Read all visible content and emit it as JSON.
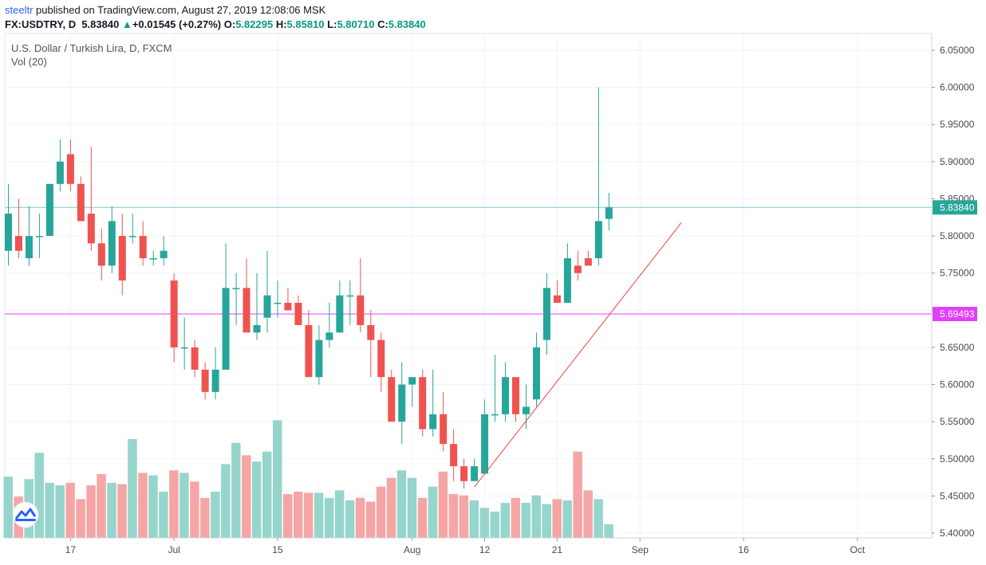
{
  "header": {
    "author": "steeltr",
    "published": " published on TradingView.com, August 27, 2019 12:08:06 MSK",
    "symbol_prefix": "FX:USDTRY, D",
    "last": "5.83840",
    "change_arrow": "▲",
    "change": "+0.01545 (+0.27%)",
    "o_label": "O:",
    "o": "5.82295",
    "h_label": "H:",
    "h": "5.85810",
    "l_label": "L:",
    "l": "5.80710",
    "c_label": "C:",
    "c": "5.83840"
  },
  "legend": {
    "title": "U.S. Dollar / Turkish Lira, D, FXCM",
    "volume": "Vol (20)"
  },
  "colors": {
    "up": "#26a69a",
    "down": "#ef5350",
    "vol_up": "#95d5cc",
    "vol_down": "#f5a6a4",
    "last_line": "#26a69a",
    "level_line": "#e040fb",
    "trendline": "#f44336",
    "grid": "#f0f3fa"
  },
  "chart_data": {
    "type": "candlestick",
    "title": "U.S. Dollar / Turkish Lira, D, FXCM",
    "y_range": [
      5.39,
      6.06
    ],
    "y_ticks": [
      5.4,
      5.45,
      5.5,
      5.55,
      5.6,
      5.65,
      5.7,
      5.75,
      5.8,
      5.85,
      5.9,
      5.95,
      6.0,
      6.05
    ],
    "y_tick_labels": [
      "5.40000",
      "5.45000",
      "5.50000",
      "5.55000",
      "5.60000",
      "5.65000",
      "5.70000",
      "5.75000",
      "5.80000",
      "5.85000",
      "5.90000",
      "5.95000",
      "6.00000",
      "6.05000"
    ],
    "x_ticks": [
      {
        "label": "17",
        "index": 6
      },
      {
        "label": "Jul",
        "index": 16
      },
      {
        "label": "15",
        "index": 26
      },
      {
        "label": "Aug",
        "index": 39
      },
      {
        "label": "12",
        "index": 46
      },
      {
        "label": "21",
        "index": 53
      },
      {
        "label": "Sep",
        "index": 61
      },
      {
        "label": "16",
        "index": 71
      },
      {
        "label": "Oct",
        "index": 82
      }
    ],
    "candles": [
      {
        "o": 5.78,
        "h": 5.87,
        "l": 5.76,
        "c": 5.83
      },
      {
        "o": 5.8,
        "h": 5.85,
        "l": 5.77,
        "c": 5.78
      },
      {
        "o": 5.77,
        "h": 5.84,
        "l": 5.76,
        "c": 5.8
      },
      {
        "o": 5.8,
        "h": 5.83,
        "l": 5.77,
        "c": 5.8
      },
      {
        "o": 5.8,
        "h": 5.87,
        "l": 5.8,
        "c": 5.87
      },
      {
        "o": 5.87,
        "h": 5.93,
        "l": 5.86,
        "c": 5.9
      },
      {
        "o": 5.91,
        "h": 5.93,
        "l": 5.86,
        "c": 5.87
      },
      {
        "o": 5.87,
        "h": 5.88,
        "l": 5.82,
        "c": 5.82
      },
      {
        "o": 5.83,
        "h": 5.92,
        "l": 5.78,
        "c": 5.79
      },
      {
        "o": 5.79,
        "h": 5.81,
        "l": 5.74,
        "c": 5.76
      },
      {
        "o": 5.76,
        "h": 5.84,
        "l": 5.75,
        "c": 5.82
      },
      {
        "o": 5.8,
        "h": 5.83,
        "l": 5.72,
        "c": 5.74
      },
      {
        "o": 5.8,
        "h": 5.83,
        "l": 5.79,
        "c": 5.8
      },
      {
        "o": 5.8,
        "h": 5.82,
        "l": 5.76,
        "c": 5.77
      },
      {
        "o": 5.77,
        "h": 5.78,
        "l": 5.76,
        "c": 5.77
      },
      {
        "o": 5.77,
        "h": 5.8,
        "l": 5.76,
        "c": 5.78
      },
      {
        "o": 5.74,
        "h": 5.75,
        "l": 5.63,
        "c": 5.65
      },
      {
        "o": 5.65,
        "h": 5.69,
        "l": 5.62,
        "c": 5.65
      },
      {
        "o": 5.65,
        "h": 5.66,
        "l": 5.61,
        "c": 5.62
      },
      {
        "o": 5.62,
        "h": 5.63,
        "l": 5.58,
        "c": 5.59
      },
      {
        "o": 5.59,
        "h": 5.65,
        "l": 5.58,
        "c": 5.62
      },
      {
        "o": 5.62,
        "h": 5.79,
        "l": 5.62,
        "c": 5.73
      },
      {
        "o": 5.73,
        "h": 5.75,
        "l": 5.68,
        "c": 5.73
      },
      {
        "o": 5.73,
        "h": 5.77,
        "l": 5.67,
        "c": 5.67
      },
      {
        "o": 5.67,
        "h": 5.75,
        "l": 5.66,
        "c": 5.68
      },
      {
        "o": 5.69,
        "h": 5.78,
        "l": 5.67,
        "c": 5.72
      },
      {
        "o": 5.71,
        "h": 5.74,
        "l": 5.69,
        "c": 5.71
      },
      {
        "o": 5.71,
        "h": 5.73,
        "l": 5.7,
        "c": 5.7
      },
      {
        "o": 5.71,
        "h": 5.72,
        "l": 5.68,
        "c": 5.68
      },
      {
        "o": 5.68,
        "h": 5.7,
        "l": 5.61,
        "c": 5.61
      },
      {
        "o": 5.61,
        "h": 5.68,
        "l": 5.6,
        "c": 5.66
      },
      {
        "o": 5.66,
        "h": 5.71,
        "l": 5.65,
        "c": 5.67
      },
      {
        "o": 5.67,
        "h": 5.74,
        "l": 5.67,
        "c": 5.72
      },
      {
        "o": 5.72,
        "h": 5.74,
        "l": 5.68,
        "c": 5.72
      },
      {
        "o": 5.72,
        "h": 5.77,
        "l": 5.67,
        "c": 5.68
      },
      {
        "o": 5.68,
        "h": 5.7,
        "l": 5.61,
        "c": 5.66
      },
      {
        "o": 5.66,
        "h": 5.67,
        "l": 5.59,
        "c": 5.61
      },
      {
        "o": 5.61,
        "h": 5.62,
        "l": 5.55,
        "c": 5.55
      },
      {
        "o": 5.55,
        "h": 5.63,
        "l": 5.52,
        "c": 5.6
      },
      {
        "o": 5.6,
        "h": 5.61,
        "l": 5.57,
        "c": 5.61
      },
      {
        "o": 5.61,
        "h": 5.62,
        "l": 5.53,
        "c": 5.54
      },
      {
        "o": 5.54,
        "h": 5.62,
        "l": 5.53,
        "c": 5.56
      },
      {
        "o": 5.56,
        "h": 5.59,
        "l": 5.51,
        "c": 5.52
      },
      {
        "o": 5.52,
        "h": 5.54,
        "l": 5.47,
        "c": 5.49
      },
      {
        "o": 5.49,
        "h": 5.5,
        "l": 5.46,
        "c": 5.47
      },
      {
        "o": 5.47,
        "h": 5.5,
        "l": 5.47,
        "c": 5.49
      },
      {
        "o": 5.48,
        "h": 5.58,
        "l": 5.48,
        "c": 5.56
      },
      {
        "o": 5.56,
        "h": 5.64,
        "l": 5.55,
        "c": 5.56
      },
      {
        "o": 5.56,
        "h": 5.63,
        "l": 5.55,
        "c": 5.61
      },
      {
        "o": 5.61,
        "h": 5.61,
        "l": 5.55,
        "c": 5.56
      },
      {
        "o": 5.56,
        "h": 5.6,
        "l": 5.54,
        "c": 5.57
      },
      {
        "o": 5.58,
        "h": 5.67,
        "l": 5.57,
        "c": 5.65
      },
      {
        "o": 5.66,
        "h": 5.75,
        "l": 5.64,
        "c": 5.73
      },
      {
        "o": 5.72,
        "h": 5.74,
        "l": 5.71,
        "c": 5.71
      },
      {
        "o": 5.71,
        "h": 5.79,
        "l": 5.71,
        "c": 5.77
      },
      {
        "o": 5.76,
        "h": 5.78,
        "l": 5.74,
        "c": 5.75
      },
      {
        "o": 5.77,
        "h": 5.78,
        "l": 5.76,
        "c": 5.76
      },
      {
        "o": 5.77,
        "h": 6.0,
        "l": 5.76,
        "c": 5.82
      },
      {
        "o": 5.82295,
        "h": 5.8581,
        "l": 5.8071,
        "c": 5.8384
      }
    ],
    "volume_relative": [
      0.49,
      0.33,
      0.47,
      0.68,
      0.44,
      0.42,
      0.44,
      0.31,
      0.42,
      0.51,
      0.44,
      0.43,
      0.79,
      0.52,
      0.5,
      0.37,
      0.54,
      0.52,
      0.45,
      0.32,
      0.37,
      0.59,
      0.76,
      0.66,
      0.61,
      0.69,
      0.94,
      0.35,
      0.37,
      0.36,
      0.36,
      0.32,
      0.38,
      0.3,
      0.32,
      0.29,
      0.41,
      0.48,
      0.54,
      0.48,
      0.32,
      0.41,
      0.53,
      0.35,
      0.34,
      0.3,
      0.24,
      0.21,
      0.28,
      0.32,
      0.28,
      0.34,
      0.27,
      0.31,
      0.3,
      0.69,
      0.38,
      0.31,
      0.11
    ],
    "last_price": 5.8384,
    "last_price_label": "5.83840",
    "level_price": 5.69493,
    "level_label": "5.69493",
    "trendline": {
      "from": {
        "index": 45,
        "price": 5.462
      },
      "to": {
        "index": 65,
        "price": 5.818
      }
    }
  }
}
